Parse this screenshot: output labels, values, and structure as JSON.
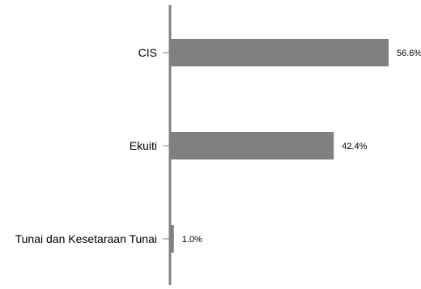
{
  "chart_data": {
    "type": "bar",
    "orientation": "horizontal",
    "categories": [
      "CIS",
      "Ekuiti",
      "Tunai dan Kesetaraan Tunai"
    ],
    "values": [
      56.6,
      42.4,
      1.0
    ],
    "value_labels": [
      "56.6%",
      "42.4%",
      "1.0%"
    ],
    "unit": "%",
    "title": "",
    "xlabel": "",
    "ylabel": "",
    "xlim": [
      0,
      56.6
    ],
    "grid": false,
    "legend": "none",
    "colors": {
      "bar": "#808080",
      "axis": "#808080",
      "text": "#000000"
    }
  }
}
